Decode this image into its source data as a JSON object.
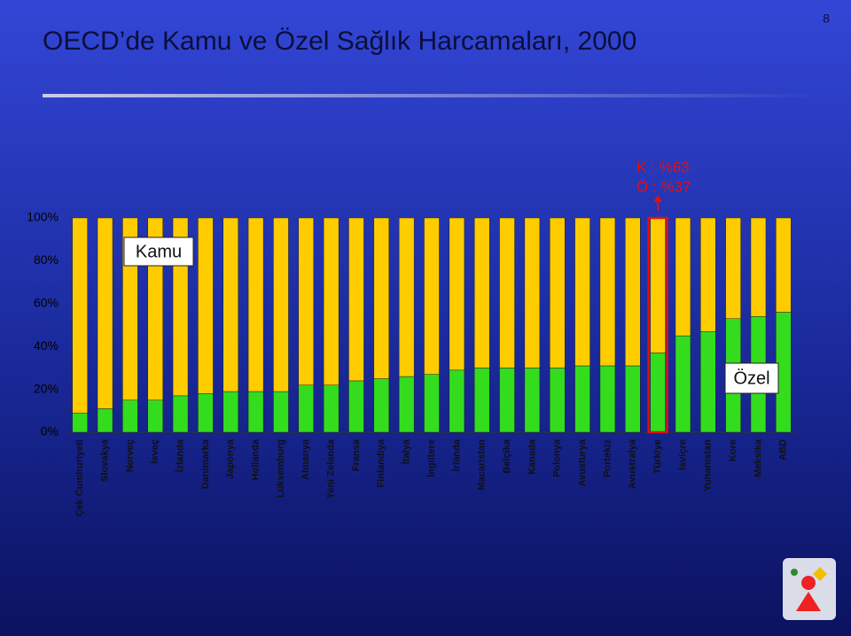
{
  "page_number": "8",
  "chart_data": {
    "type": "bar",
    "stacked": true,
    "title": "OECD’de Kamu ve Özel Sağlık Harcamaları, 2000",
    "categories": [
      "Çek Cumhuriyeti",
      "Slovakya",
      "Norveç",
      "İsveç",
      "İzlanda",
      "Danimarka",
      "Japonya",
      "Hollanda",
      "Lüksemburg",
      "Almanya",
      "Yeni Zelanda",
      "Fransa",
      "Finlandiya",
      "İtalya",
      "İngiltere",
      "İrlanda",
      "Macaristan",
      "Belçika",
      "Kanada",
      "Polonya",
      "Avusturya",
      "Portekiz",
      "Avustralya",
      "Türkiye",
      "İsviçre",
      "Yunanistan",
      "Kore",
      "Meksika",
      "ABD"
    ],
    "series": [
      {
        "name": "Özel",
        "color": "#33dd1e",
        "values": [
          9,
          11,
          15,
          15,
          17,
          18,
          19,
          19,
          19,
          22,
          22,
          24,
          25,
          26,
          27,
          29,
          30,
          30,
          30,
          30,
          31,
          31,
          31,
          37,
          45,
          47,
          53,
          54,
          56
        ]
      },
      {
        "name": "Kamu",
        "color": "#ffcc00",
        "values": [
          91,
          89,
          85,
          85,
          83,
          82,
          81,
          81,
          81,
          78,
          78,
          76,
          75,
          74,
          73,
          71,
          70,
          70,
          70,
          70,
          69,
          69,
          69,
          63,
          55,
          53,
          47,
          46,
          44
        ]
      }
    ],
    "ylim": [
      0,
      100
    ],
    "yticks": [
      {
        "value": 0,
        "label": "0%"
      },
      {
        "value": 20,
        "label": "20%"
      },
      {
        "value": 40,
        "label": "40%"
      },
      {
        "value": 60,
        "label": "60%"
      },
      {
        "value": 80,
        "label": "80%"
      },
      {
        "value": 100,
        "label": "100%"
      }
    ],
    "highlight_category": "Türkiye",
    "annotations": [
      "K : %63",
      "Ö : %37"
    ]
  }
}
